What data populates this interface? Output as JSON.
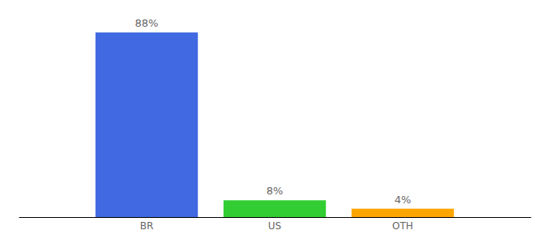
{
  "chart_data": {
    "type": "bar",
    "categories": [
      "BR",
      "US",
      "OTH"
    ],
    "values": [
      88,
      8,
      4
    ],
    "value_labels": [
      "88%",
      "8%",
      "4%"
    ],
    "colors": [
      "#4169e1",
      "#32cd32",
      "#ffa500"
    ],
    "ylim": [
      0,
      100
    ],
    "data_labels": true,
    "tick_labels": "x",
    "grid": false
  }
}
